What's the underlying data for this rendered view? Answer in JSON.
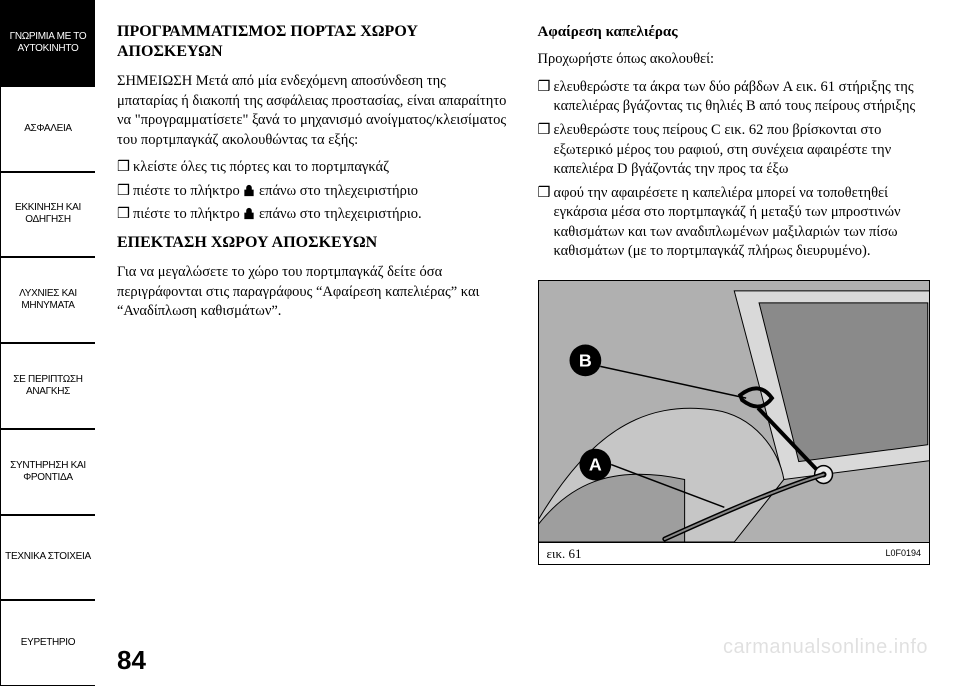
{
  "sidebar": {
    "tabs": [
      {
        "label": "ΓΝΩΡΙΜΙΑ ΜΕ ΤΟ\nΑΥΤΟΚΙΝΗΤΟ",
        "active": true
      },
      {
        "label": "ΑΣΦΑΛΕΙΑ",
        "active": false
      },
      {
        "label": "ΕΚΚΙΝΗΣΗ ΚΑΙ\nΟΔΗΓΗΣΗ",
        "active": false
      },
      {
        "label": "ΛΥΧΝΙΕΣ ΚΑΙ\nΜΗΝΥΜΑΤΑ",
        "active": false
      },
      {
        "label": "ΣΕ ΠΕΡΙΠΤΩΣΗ\nΑΝΑΓΚΗΣ",
        "active": false
      },
      {
        "label": "ΣΥΝΤΗΡΗΣΗ ΚΑΙ\nΦΡΟΝΤΙΔΑ",
        "active": false
      },
      {
        "label": "ΤΕΧΝΙΚΑ ΣΤΟΙΧΕΙΑ",
        "active": false
      },
      {
        "label": "ΕΥΡΕΤΗΡΙΟ",
        "active": false
      }
    ]
  },
  "left": {
    "h1": "ΠΡΟΓΡΑΜΜΑΤΙΣΜΟΣ ΠΟΡΤΑΣ ΧΩΡΟΥ ΑΠΟΣΚΕΥΩΝ",
    "p1": "ΣΗΜΕΙΩΣΗ Μετά από μία ενδεχόμενη αποσύνδεση της μπαταρίας ή διακοπή της ασφάλειας προστασίας, είναι απαραίτητο να \"προγραμματίσετε\" ξανά το μηχανισμό ανοίγματος/κλεισίματος του πορτμπαγκάζ ακολουθώντας τα εξής:",
    "b1": "κλείστε όλες τις πόρτες και το πορτμπαγκάζ",
    "b2a": "πιέστε το πλήκτρο ",
    "b2b": " επάνω στο τηλεχειριστήριο",
    "b3a": "πιέστε το πλήκτρο ",
    "b3b": " επάνω στο τηλεχειριστήριο.",
    "h2": "ΕΠΕΚΤΑΣΗ ΧΩΡΟΥ ΑΠΟΣΚΕΥΩΝ",
    "p2": "Για να μεγαλώσετε το χώρο του πορτμπαγκάζ δείτε όσα περιγράφονται στις παραγράφους “Αφαίρεση καπελιέρας” και “Αναδίπλωση καθισμάτων”."
  },
  "right": {
    "h1": "Αφαίρεση καπελιέρας",
    "p1": "Προχωρήστε όπως ακολουθεί:",
    "b1": "ελευθερώστε τα άκρα των δύο ράβδων A εικ. 61 στήριξης της καπελιέρας βγάζοντας τις θηλιές B από τους πείρους στήριξης",
    "b2": "ελευθερώστε τους πείρους C εικ. 62 που βρίσκονται στο εξωτερικό μέρος του ραφιού, στη συνέχεια αφαιρέστε την καπελιέρα D βγάζοντάς την προς τα έξω",
    "b3": "αφού την αφαιρέσετε η καπελιέρα μπορεί να τοποθετηθεί εγκάρσια μέσα στο πορτμπαγκάζ ή μεταξύ των μπροστινών καθισμάτων και των αναδιπλωμένων μαξιλαριών των πίσω καθισμάτων (με το πορτμπαγκάζ πλήρως διευρυμένο)."
  },
  "figure": {
    "caption": "εικ. 61",
    "code": "L0F0194",
    "labels": {
      "a": "A",
      "b": "B"
    },
    "colors": {
      "bg": "#b8b8b8",
      "panel_light": "#d8d8d8",
      "panel_dark": "#6a6a6a",
      "line": "#000000"
    }
  },
  "pagenum": "84",
  "watermark": "carmanualsonline.info"
}
